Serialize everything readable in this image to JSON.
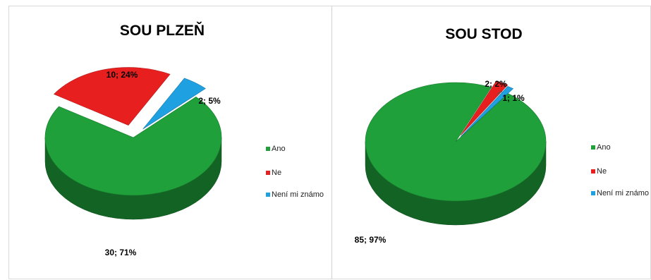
{
  "chart_data": [
    {
      "type": "pie",
      "title": "SOU PLZEŇ",
      "categories": [
        "Ano",
        "Ne",
        "Není mi známo"
      ],
      "values": [
        30,
        10,
        2
      ],
      "percent": [
        71,
        24,
        5
      ],
      "data_labels": [
        "30; 71%",
        "10; 24%",
        "2; 5%"
      ],
      "legend": [
        "Ano",
        "Ne",
        "Není mi známo"
      ],
      "legend_position": "right",
      "style": "3d",
      "colors": [
        "#1fa03a",
        "#e81f1f",
        "#1fa0e0"
      ]
    },
    {
      "type": "pie",
      "title": "SOU STOD",
      "categories": [
        "Ano",
        "Ne",
        "Není mi známo"
      ],
      "values": [
        85,
        2,
        1
      ],
      "percent": [
        97,
        2,
        1
      ],
      "data_labels": [
        "85; 97%",
        "2; 2%",
        "1; 1%"
      ],
      "legend": [
        "Ano",
        "Ne",
        "Není mi známo"
      ],
      "legend_position": "right",
      "style": "3d",
      "colors": [
        "#1fa03a",
        "#e81f1f",
        "#1fa0e0"
      ]
    }
  ]
}
